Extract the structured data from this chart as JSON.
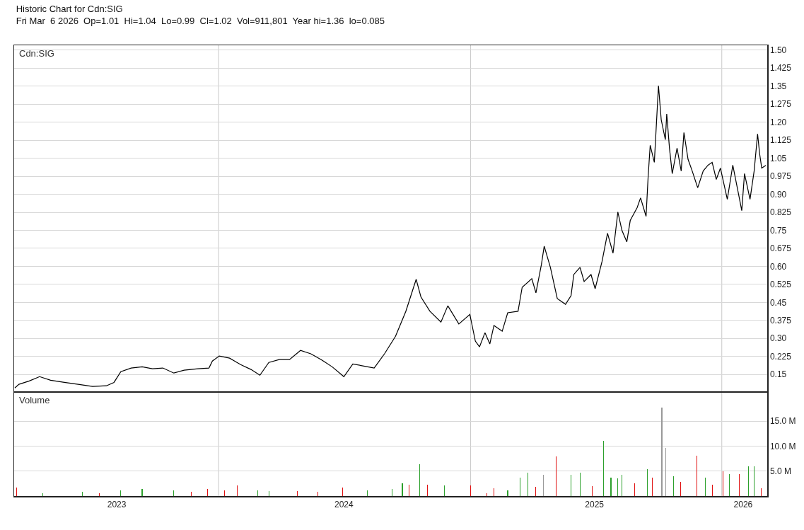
{
  "chart_data": [
    {
      "type": "line",
      "title": "Historic Chart for Cdn:SIG",
      "subtitle": "Fri Mar  6 2026  Op=1.01  Hi=1.04  Lo=0.99  Cl=1.02  Vol=911,801  Year hi=1.36  lo=0.085",
      "annotations": [
        "Cdn:SIG"
      ],
      "color": "#000000",
      "x": [
        "2023-03-11",
        "2023-03-17",
        "2023-04-01",
        "2023-04-16",
        "2023-05-02",
        "2023-05-22",
        "2023-06-11",
        "2023-07-02",
        "2023-07-22",
        "2023-08-02",
        "2023-08-12",
        "2023-08-27",
        "2023-09-12",
        "2023-09-27",
        "2023-10-12",
        "2023-10-28",
        "2023-11-12",
        "2023-12-02",
        "2023-12-18",
        "2023-12-23",
        "2024-01-02",
        "2024-01-17",
        "2024-02-02",
        "2024-02-17",
        "2024-03-01",
        "2024-03-14",
        "2024-03-29",
        "2024-04-13",
        "2024-04-29",
        "2024-05-14",
        "2024-05-29",
        "2024-06-14",
        "2024-07-01",
        "2024-07-14",
        "2024-07-30",
        "2024-08-14",
        "2024-08-29",
        "2024-09-14",
        "2024-09-29",
        "2024-10-14",
        "2024-10-21",
        "2024-11-03",
        "2024-11-19",
        "2024-11-29",
        "2024-12-15",
        "2024-12-31",
        "2025-01-08",
        "2025-01-14",
        "2025-01-22",
        "2025-01-29",
        "2025-02-04",
        "2025-02-16",
        "2025-02-24",
        "2025-03-11",
        "2025-03-17",
        "2025-03-31",
        "2025-04-06",
        "2025-04-14",
        "2025-04-18",
        "2025-04-27",
        "2025-05-07",
        "2025-05-19",
        "2025-05-27",
        "2025-05-31",
        "2025-06-09",
        "2025-06-15",
        "2025-06-25",
        "2025-07-01",
        "2025-07-11",
        "2025-07-19",
        "2025-07-27",
        "2025-08-03",
        "2025-08-09",
        "2025-08-16",
        "2025-08-21",
        "2025-08-31",
        "2025-09-05",
        "2025-09-13",
        "2025-09-16",
        "2025-09-19",
        "2025-09-25",
        "2025-10-01",
        "2025-10-05",
        "2025-10-11",
        "2025-10-13",
        "2025-10-17",
        "2025-10-21",
        "2025-10-28",
        "2025-11-03",
        "2025-11-07",
        "2025-11-13",
        "2025-11-19",
        "2025-11-27",
        "2025-12-05",
        "2025-12-12",
        "2025-12-18",
        "2025-12-24",
        "2025-12-30",
        "2026-01-09",
        "2026-01-17",
        "2026-01-26",
        "2026-01-30",
        "2026-02-03",
        "2026-02-11",
        "2026-02-17",
        "2026-02-22",
        "2026-02-25",
        "2026-02-28",
        "2026-03-06"
      ],
      "values": [
        0.094,
        0.109,
        0.123,
        0.141,
        0.126,
        0.117,
        0.109,
        0.1,
        0.103,
        0.117,
        0.162,
        0.177,
        0.182,
        0.174,
        0.177,
        0.156,
        0.168,
        0.174,
        0.177,
        0.206,
        0.227,
        0.218,
        0.191,
        0.171,
        0.147,
        0.2,
        0.212,
        0.212,
        0.25,
        0.236,
        0.212,
        0.182,
        0.141,
        0.194,
        0.185,
        0.177,
        0.236,
        0.309,
        0.413,
        0.546,
        0.472,
        0.413,
        0.368,
        0.436,
        0.36,
        0.4,
        0.289,
        0.265,
        0.324,
        0.277,
        0.354,
        0.33,
        0.407,
        0.413,
        0.513,
        0.549,
        0.49,
        0.608,
        0.684,
        0.596,
        0.466,
        0.442,
        0.478,
        0.566,
        0.596,
        0.537,
        0.566,
        0.507,
        0.62,
        0.738,
        0.655,
        0.826,
        0.749,
        0.702,
        0.791,
        0.844,
        0.885,
        0.808,
        0.974,
        1.104,
        1.033,
        1.352,
        1.21,
        1.127,
        1.234,
        1.092,
        0.986,
        1.092,
        0.997,
        1.157,
        1.045,
        0.997,
        0.927,
        0.997,
        1.021,
        1.033,
        0.962,
        1.009,
        0.879,
        1.021,
        0.891,
        0.832,
        0.986,
        0.879,
        0.997,
        1.151,
        1.068,
        1.009,
        1.02
      ],
      "xlim": [
        "2023-03-10",
        "2026-03-08"
      ],
      "ylim": [
        0.08,
        1.52
      ],
      "yticks": [
        0.15,
        0.225,
        {
          "value": 0.3,
          "label": "0.30"
        },
        0.375,
        0.45,
        0.525,
        {
          "value": 0.6,
          "label": "0.60"
        },
        0.675,
        0.75,
        0.825,
        {
          "value": 0.9,
          "label": "0.90"
        },
        0.975,
        1.05,
        1.125,
        {
          "value": 1.2,
          "label": "1.20"
        },
        1.275,
        1.35,
        1.425,
        {
          "value": 1.5,
          "label": "1.50"
        }
      ],
      "tick_labels": "y",
      "grid": "y",
      "ref_lines": [
        {
          "axis": "x",
          "value": "2024-01-01",
          "color": "#c8c8c8"
        },
        {
          "axis": "x",
          "value": "2025-01-01",
          "color": "#c8c8c8"
        },
        {
          "axis": "x",
          "value": "2026-01-01",
          "color": "#c8c8c8"
        }
      ]
    },
    {
      "type": "bar",
      "annotations": [
        "Volume"
      ],
      "x": [
        "2023-03-14",
        "2023-04-21",
        "2023-06-17",
        "2023-07-12",
        "2023-08-12",
        "2023-09-12",
        "2023-10-28",
        "2023-11-22",
        "2023-12-16",
        "2024-01-10",
        "2024-01-28",
        "2024-02-27",
        "2024-03-14",
        "2024-04-24",
        "2024-05-24",
        "2024-06-29",
        "2024-08-04",
        "2024-09-09",
        "2024-09-24",
        "2024-10-04",
        "2024-10-19",
        "2024-10-30",
        "2024-11-24",
        "2025-01-01",
        "2025-01-25",
        "2025-02-04",
        "2025-02-24",
        "2025-03-14",
        "2025-03-25",
        "2025-04-06",
        "2025-04-17",
        "2025-05-05",
        "2025-05-27",
        "2025-06-09",
        "2025-06-27",
        "2025-07-13",
        "2025-07-24",
        "2025-08-03",
        "2025-08-09",
        "2025-08-27",
        "2025-09-15",
        "2025-09-22",
        "2025-10-06",
        "2025-10-12",
        "2025-10-23",
        "2025-11-02",
        "2025-11-26",
        "2025-12-08",
        "2025-12-18",
        "2026-01-03",
        "2026-01-12",
        "2026-01-26",
        "2026-02-09",
        "2026-02-17",
        "2026-02-27"
      ],
      "values": [
        1.7,
        0.5,
        0.9,
        0.6,
        1.1,
        1.4,
        1.1,
        0.8,
        1.4,
        1.1,
        2.1,
        1.1,
        1.0,
        1.0,
        0.9,
        1.7,
        1.2,
        1.4,
        2.6,
        2.3,
        6.4,
        2.3,
        2.1,
        2.1,
        0.6,
        1.5,
        1.2,
        3.7,
        4.7,
        1.8,
        4.3,
        8.0,
        4.3,
        4.7,
        2.0,
        11.1,
        3.7,
        3.6,
        4.3,
        2.5,
        5.4,
        3.7,
        17.7,
        9.7,
        4.0,
        2.8,
        8.1,
        3.7,
        2.2,
        5.0,
        4.4,
        4.4,
        5.9,
        6.0,
        1.5
      ],
      "colors": [
        "#e01010",
        "#2ca02c",
        "#2ca02c",
        "#e01010",
        "#2ca02c",
        "#2ca02c",
        "#2ca02c",
        "#e01010",
        "#e01010",
        "#e01010",
        "#e01010",
        "#2ca02c",
        "#2ca02c",
        "#e01010",
        "#e01010",
        "#e01010",
        "#2ca02c",
        "#2ca02c",
        "#2ca02c",
        "#e01010",
        "#2ca02c",
        "#e01010",
        "#2ca02c",
        "#e01010",
        "#e01010",
        "#e01010",
        "#2ca02c",
        "#2ca02c",
        "#2ca02c",
        "#e01010",
        "#999999",
        "#e01010",
        "#2ca02c",
        "#2ca02c",
        "#e01010",
        "#2ca02c",
        "#2ca02c",
        "#2ca02c",
        "#2ca02c",
        "#e01010",
        "#2ca02c",
        "#e01010",
        "#999999",
        "#999999",
        "#2ca02c",
        "#e01010",
        "#e01010",
        "#2ca02c",
        "#e01010",
        "#e01010",
        "#2ca02c",
        "#e01010",
        "#2ca02c",
        "#2ca02c",
        "#e01010"
      ],
      "xlim": [
        "2023-03-10",
        "2026-03-08"
      ],
      "ylim": [
        0,
        20.7
      ],
      "yticks": [
        {
          "value": 5,
          "label": "5.0 M"
        },
        {
          "value": 10,
          "label": "10.0 M"
        },
        {
          "value": 15,
          "label": "15.0 M"
        }
      ],
      "xticks": [
        {
          "value": "2023-08-06",
          "label": "2023"
        },
        {
          "value": "2024-07-01",
          "label": "2024"
        },
        {
          "value": "2025-06-30",
          "label": "2025"
        },
        {
          "value": "2026-02-01",
          "label": "2026"
        }
      ],
      "grid": "y",
      "ref_lines": [
        {
          "axis": "x",
          "value": "2024-01-01",
          "color": "#c8c8c8"
        },
        {
          "axis": "x",
          "value": "2025-01-01",
          "color": "#c8c8c8"
        },
        {
          "axis": "x",
          "value": "2026-01-01",
          "color": "#c8c8c8"
        }
      ]
    }
  ]
}
